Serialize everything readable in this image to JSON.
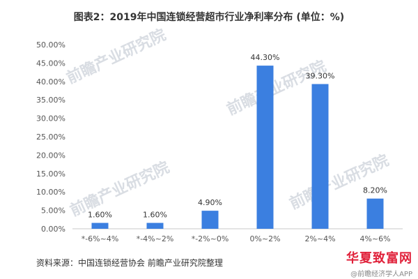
{
  "chart_data": {
    "type": "bar",
    "title": "图表2：2019年中国连锁经营超市行业净利率分布 (单位：%)",
    "categories": [
      "*-6%~4%",
      "*-4%~2%",
      "*-2%~0%",
      "0%~2%",
      "2%~4%",
      "4%~6%"
    ],
    "values": [
      1.6,
      1.6,
      4.9,
      44.3,
      39.3,
      8.2
    ],
    "data_labels": [
      "1.60%",
      "1.60%",
      "4.90%",
      "44.30%",
      "39.30%",
      "8.20%"
    ],
    "y_ticks": [
      "0.00%",
      "5.00%",
      "10.00%",
      "15.00%",
      "20.00%",
      "25.00%",
      "30.00%",
      "35.00%",
      "40.00%",
      "45.00%",
      "50.00%"
    ],
    "ylim": [
      0,
      50
    ],
    "grid": false,
    "bar_color": "#3b7fe0"
  },
  "source": "资料来源：中国连锁经营协会 前瞻产业研究院整理",
  "watermark": "前瞻产业研究院",
  "brand": {
    "name": "华夏致富网",
    "sub": "@前瞻经济学人APP"
  }
}
